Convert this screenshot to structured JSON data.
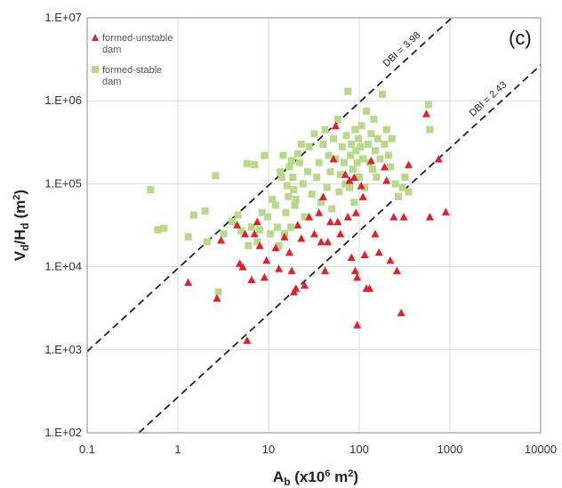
{
  "chart_data": {
    "type": "scatter",
    "panel_label": "(c)",
    "xlabel": {
      "main": "A",
      "sub": "b",
      "rest": " (x10",
      "sup": "6",
      "tail": " m",
      "sup2": "2",
      "end": ")"
    },
    "ylabel": {
      "main": "V",
      "sub1": "d",
      "slash": "/H",
      "sub2": "d",
      "rest": " (m",
      "sup": "2",
      "end": ")"
    },
    "x_scale": "log",
    "y_scale": "log",
    "xlim": [
      0.1,
      10000
    ],
    "ylim": [
      100,
      10000000
    ],
    "x_ticks": [
      {
        "value": 0.1,
        "label": "0.1"
      },
      {
        "value": 1,
        "label": "1"
      },
      {
        "value": 10,
        "label": "10"
      },
      {
        "value": 100,
        "label": "100"
      },
      {
        "value": 1000,
        "label": "1000"
      },
      {
        "value": 10000,
        "label": "10000"
      }
    ],
    "y_ticks": [
      {
        "value": 100,
        "label": "1.E+02"
      },
      {
        "value": 1000,
        "label": "1.E+03"
      },
      {
        "value": 10000,
        "label": "1.E+04"
      },
      {
        "value": 100000,
        "label": "1.E+05"
      },
      {
        "value": 1000000,
        "label": "1.E+06"
      },
      {
        "value": 10000000,
        "label": "1.E+07"
      }
    ],
    "grid": true,
    "legend_position": "top-left",
    "reference_lines": [
      {
        "label": "DBI = 3.98",
        "log_intercept": 3.98
      },
      {
        "label": "DBI = 2.43",
        "log_intercept": 2.43
      }
    ],
    "series": [
      {
        "name_line1": "formed-unstable",
        "name_line2": "dam",
        "marker": "triangle",
        "color": "#e0202a",
        "points": [
          [
            1.3,
            6500
          ],
          [
            2.7,
            4200
          ],
          [
            3.0,
            21000
          ],
          [
            4.5,
            32000
          ],
          [
            4.8,
            11000
          ],
          [
            5.2,
            10000
          ],
          [
            5.5,
            25000
          ],
          [
            5.8,
            1300
          ],
          [
            6.5,
            7000
          ],
          [
            7.0,
            25000
          ],
          [
            7.5,
            35000
          ],
          [
            8.0,
            18000
          ],
          [
            9.0,
            7500
          ],
          [
            9.5,
            12000
          ],
          [
            12,
            17000
          ],
          [
            13,
            9500
          ],
          [
            15,
            23000
          ],
          [
            17,
            15000
          ],
          [
            18,
            9000
          ],
          [
            19,
            5000
          ],
          [
            20,
            5500
          ],
          [
            21,
            32000
          ],
          [
            23,
            22000
          ],
          [
            25,
            6000
          ],
          [
            28,
            40000
          ],
          [
            32,
            25000
          ],
          [
            36,
            45000
          ],
          [
            38,
            20000
          ],
          [
            40,
            70000
          ],
          [
            42,
            9000
          ],
          [
            45,
            20000
          ],
          [
            48,
            35000
          ],
          [
            52,
            200000
          ],
          [
            55,
            500000
          ],
          [
            58,
            35000
          ],
          [
            62,
            25000
          ],
          [
            70,
            130000
          ],
          [
            75,
            40000
          ],
          [
            78,
            110000
          ],
          [
            82,
            13000
          ],
          [
            88,
            120000
          ],
          [
            90,
            9000
          ],
          [
            92,
            45000
          ],
          [
            95,
            7500
          ],
          [
            95,
            2000
          ],
          [
            105,
            95000
          ],
          [
            110,
            70000
          ],
          [
            115,
            14000
          ],
          [
            120,
            5500
          ],
          [
            130,
            5500
          ],
          [
            135,
            190000
          ],
          [
            150,
            25000
          ],
          [
            165,
            15000
          ],
          [
            190,
            160000
          ],
          [
            200,
            110000
          ],
          [
            220,
            12000
          ],
          [
            240,
            40000
          ],
          [
            260,
            9000
          ],
          [
            290,
            2800
          ],
          [
            310,
            40000
          ],
          [
            350,
            170000
          ],
          [
            550,
            700000
          ],
          [
            600,
            40000
          ],
          [
            750,
            200000
          ],
          [
            900,
            46000
          ]
        ]
      },
      {
        "name_line1": "formed-stable",
        "name_line2": "dam",
        "marker": "square",
        "color": "#b7d98a",
        "points": [
          [
            0.5,
            85000
          ],
          [
            0.6,
            28000
          ],
          [
            0.7,
            29000
          ],
          [
            1.3,
            23000
          ],
          [
            1.5,
            42000
          ],
          [
            2.0,
            47000
          ],
          [
            2.1,
            20000
          ],
          [
            2.6,
            125000
          ],
          [
            2.8,
            5000
          ],
          [
            3.2,
            25000
          ],
          [
            4.0,
            35000
          ],
          [
            4.6,
            42000
          ],
          [
            5.0,
            27000
          ],
          [
            5.8,
            175000
          ],
          [
            6.0,
            18000
          ],
          [
            6.5,
            30000
          ],
          [
            7.0,
            170000
          ],
          [
            7.5,
            20000
          ],
          [
            8.0,
            28000
          ],
          [
            8.5,
            45000
          ],
          [
            9.0,
            220000
          ],
          [
            9.8,
            40000
          ],
          [
            10.5,
            25000
          ],
          [
            11,
            65000
          ],
          [
            12,
            55000
          ],
          [
            12.5,
            30000
          ],
          [
            13,
            18000
          ],
          [
            13.5,
            140000
          ],
          [
            14,
            120000
          ],
          [
            14.5,
            220000
          ],
          [
            15,
            25000
          ],
          [
            15.5,
            45000
          ],
          [
            16,
            95000
          ],
          [
            16.5,
            70000
          ],
          [
            17,
            160000
          ],
          [
            17.5,
            30000
          ],
          [
            18,
            190000
          ],
          [
            18.5,
            120000
          ],
          [
            19,
            85000
          ],
          [
            19.5,
            55000
          ],
          [
            20,
            65000
          ],
          [
            21,
            230000
          ],
          [
            22,
            180000
          ],
          [
            23,
            300000
          ],
          [
            24,
            100000
          ],
          [
            25,
            40000
          ],
          [
            27,
            140000
          ],
          [
            28,
            280000
          ],
          [
            30,
            75000
          ],
          [
            32,
            400000
          ],
          [
            34,
            120000
          ],
          [
            36,
            180000
          ],
          [
            38,
            60000
          ],
          [
            40,
            300000
          ],
          [
            42,
            450000
          ],
          [
            44,
            90000
          ],
          [
            46,
            220000
          ],
          [
            48,
            140000
          ],
          [
            50,
            50000
          ],
          [
            52,
            350000
          ],
          [
            55,
            200000
          ],
          [
            58,
            600000
          ],
          [
            60,
            80000
          ],
          [
            62,
            130000
          ],
          [
            65,
            280000
          ],
          [
            68,
            180000
          ],
          [
            70,
            100000
          ],
          [
            72,
            380000
          ],
          [
            75,
            1300000
          ],
          [
            78,
            90000
          ],
          [
            80,
            220000
          ],
          [
            82,
            300000
          ],
          [
            85,
            150000
          ],
          [
            88,
            60000
          ],
          [
            90,
            450000
          ],
          [
            92,
            250000
          ],
          [
            95,
            180000
          ],
          [
            98,
            350000
          ],
          [
            100,
            120000
          ],
          [
            103,
            280000
          ],
          [
            106,
            500000
          ],
          [
            110,
            200000
          ],
          [
            115,
            90000
          ],
          [
            120,
            750000
          ],
          [
            125,
            300000
          ],
          [
            130,
            180000
          ],
          [
            135,
            400000
          ],
          [
            140,
            150000
          ],
          [
            145,
            600000
          ],
          [
            150,
            250000
          ],
          [
            155,
            120000
          ],
          [
            160,
            350000
          ],
          [
            170,
            200000
          ],
          [
            180,
            1200000
          ],
          [
            190,
            300000
          ],
          [
            200,
            450000
          ],
          [
            210,
            220000
          ],
          [
            220,
            160000
          ],
          [
            230,
            350000
          ],
          [
            250,
            100000
          ],
          [
            270,
            70000
          ],
          [
            300,
            90000
          ],
          [
            320,
            120000
          ],
          [
            350,
            80000
          ],
          [
            580,
            900000
          ],
          [
            600,
            450000
          ]
        ]
      }
    ]
  }
}
